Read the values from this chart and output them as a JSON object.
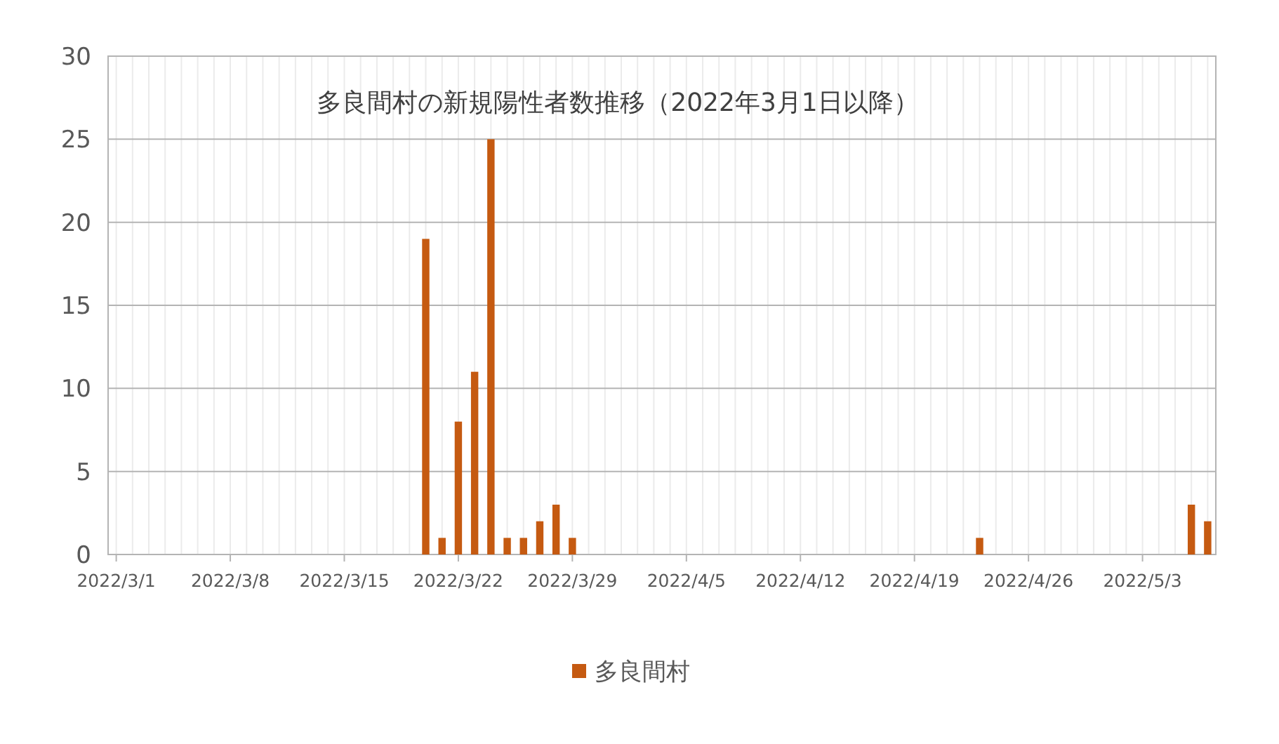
{
  "chart_data": {
    "type": "bar",
    "title": "多良間村の新規陽性者数推移（2022年3月1日以降）",
    "x": [
      "2022-03-20",
      "2022-03-21",
      "2022-03-22",
      "2022-03-23",
      "2022-03-24",
      "2022-03-25",
      "2022-03-26",
      "2022-03-27",
      "2022-03-28",
      "2022-03-29",
      "2022-04-23",
      "2022-05-06",
      "2022-05-07"
    ],
    "series": [
      {
        "name": "多良間村",
        "color": "#c55a11",
        "values": [
          19,
          1,
          8,
          11,
          25,
          1,
          1,
          2,
          3,
          1,
          1,
          3,
          2
        ]
      }
    ],
    "xlim": [
      "2022-02-28T12:00",
      "2022-05-07T12:00"
    ],
    "xticks": [
      {
        "value": "2022-03-01",
        "label": "2022/3/1"
      },
      {
        "value": "2022-03-08",
        "label": "2022/3/8"
      },
      {
        "value": "2022-03-15",
        "label": "2022/3/15"
      },
      {
        "value": "2022-03-22",
        "label": "2022/3/22"
      },
      {
        "value": "2022-03-29",
        "label": "2022/3/29"
      },
      {
        "value": "2022-04-05",
        "label": "2022/4/5"
      },
      {
        "value": "2022-04-12",
        "label": "2022/4/12"
      },
      {
        "value": "2022-04-19",
        "label": "2022/4/19"
      },
      {
        "value": "2022-04-26",
        "label": "2022/4/26"
      },
      {
        "value": "2022-05-03",
        "label": "2022/5/3"
      }
    ],
    "ylim": [
      0,
      30
    ],
    "yticks": [
      0,
      5,
      10,
      15,
      20,
      25,
      30
    ],
    "grid": true,
    "legend": "bottom"
  }
}
